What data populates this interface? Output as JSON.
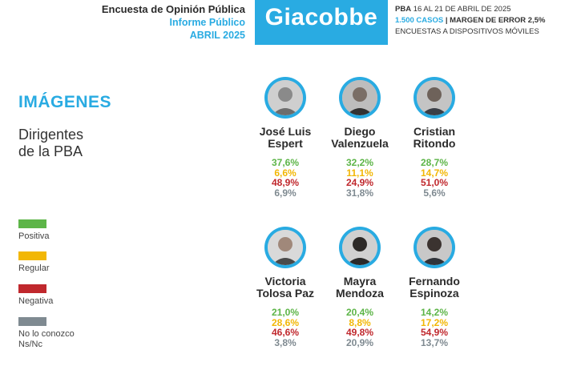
{
  "header": {
    "line1": "Encuesta de Opinión Pública",
    "line2": "Informe Público",
    "line3": "ABRIL 2025",
    "brand": "Giacobbe",
    "right_prefix": "PBA",
    "right_dates": "16 AL 21 DE ABRIL DE 2025",
    "sample": "1.500 CASOS",
    "margin": "| MARGEN DE ERROR 2,5%",
    "method": "ENCUESTAS A DISPOSITIVOS MÓVILES"
  },
  "section_title": "IMÁGENES",
  "subtitle": {
    "line1": "Dirigentes",
    "line2": "de la PBA"
  },
  "legend": [
    {
      "label": "Positiva",
      "color": "#5db548"
    },
    {
      "label": "Regular",
      "color": "#f2b705"
    },
    {
      "label": "Negativa",
      "color": "#c0282d"
    },
    {
      "label": "No lo conozco",
      "label2": "Ns/Nc",
      "color": "#7f8a91"
    }
  ],
  "chart_data": {
    "type": "table",
    "title": "IMÁGENES",
    "subtitle": "Dirigentes de la PBA",
    "categories": [
      "Positiva",
      "Regular",
      "Negativa",
      "No lo conozco Ns/Nc"
    ],
    "candidates": [
      {
        "first": "José Luis",
        "last": "Espert",
        "values": [
          "37,6%",
          "6,6%",
          "48,9%",
          "6,9%"
        ],
        "avatar_icon": "portrait-icon"
      },
      {
        "first": "Diego",
        "last": "Valenzuela",
        "values": [
          "32,2%",
          "11,1%",
          "24,9%",
          "31,8%"
        ],
        "avatar_icon": "portrait-icon"
      },
      {
        "first": "Cristian",
        "last": "Ritondo",
        "values": [
          "28,7%",
          "14,7%",
          "51,0%",
          "5,6%"
        ],
        "avatar_icon": "portrait-icon"
      },
      {
        "first": "Victoria",
        "last": "Tolosa Paz",
        "values": [
          "21,0%",
          "28,6%",
          "46,6%",
          "3,8%"
        ],
        "avatar_icon": "portrait-icon"
      },
      {
        "first": "Mayra",
        "last": "Mendoza",
        "values": [
          "20,4%",
          "8,8%",
          "49,8%",
          "20,9%"
        ],
        "avatar_icon": "portrait-icon"
      },
      {
        "first": "Fernando",
        "last": "Espinoza",
        "values": [
          "14,2%",
          "17,2%",
          "54,9%",
          "13,7%"
        ],
        "avatar_icon": "portrait-icon"
      }
    ]
  }
}
